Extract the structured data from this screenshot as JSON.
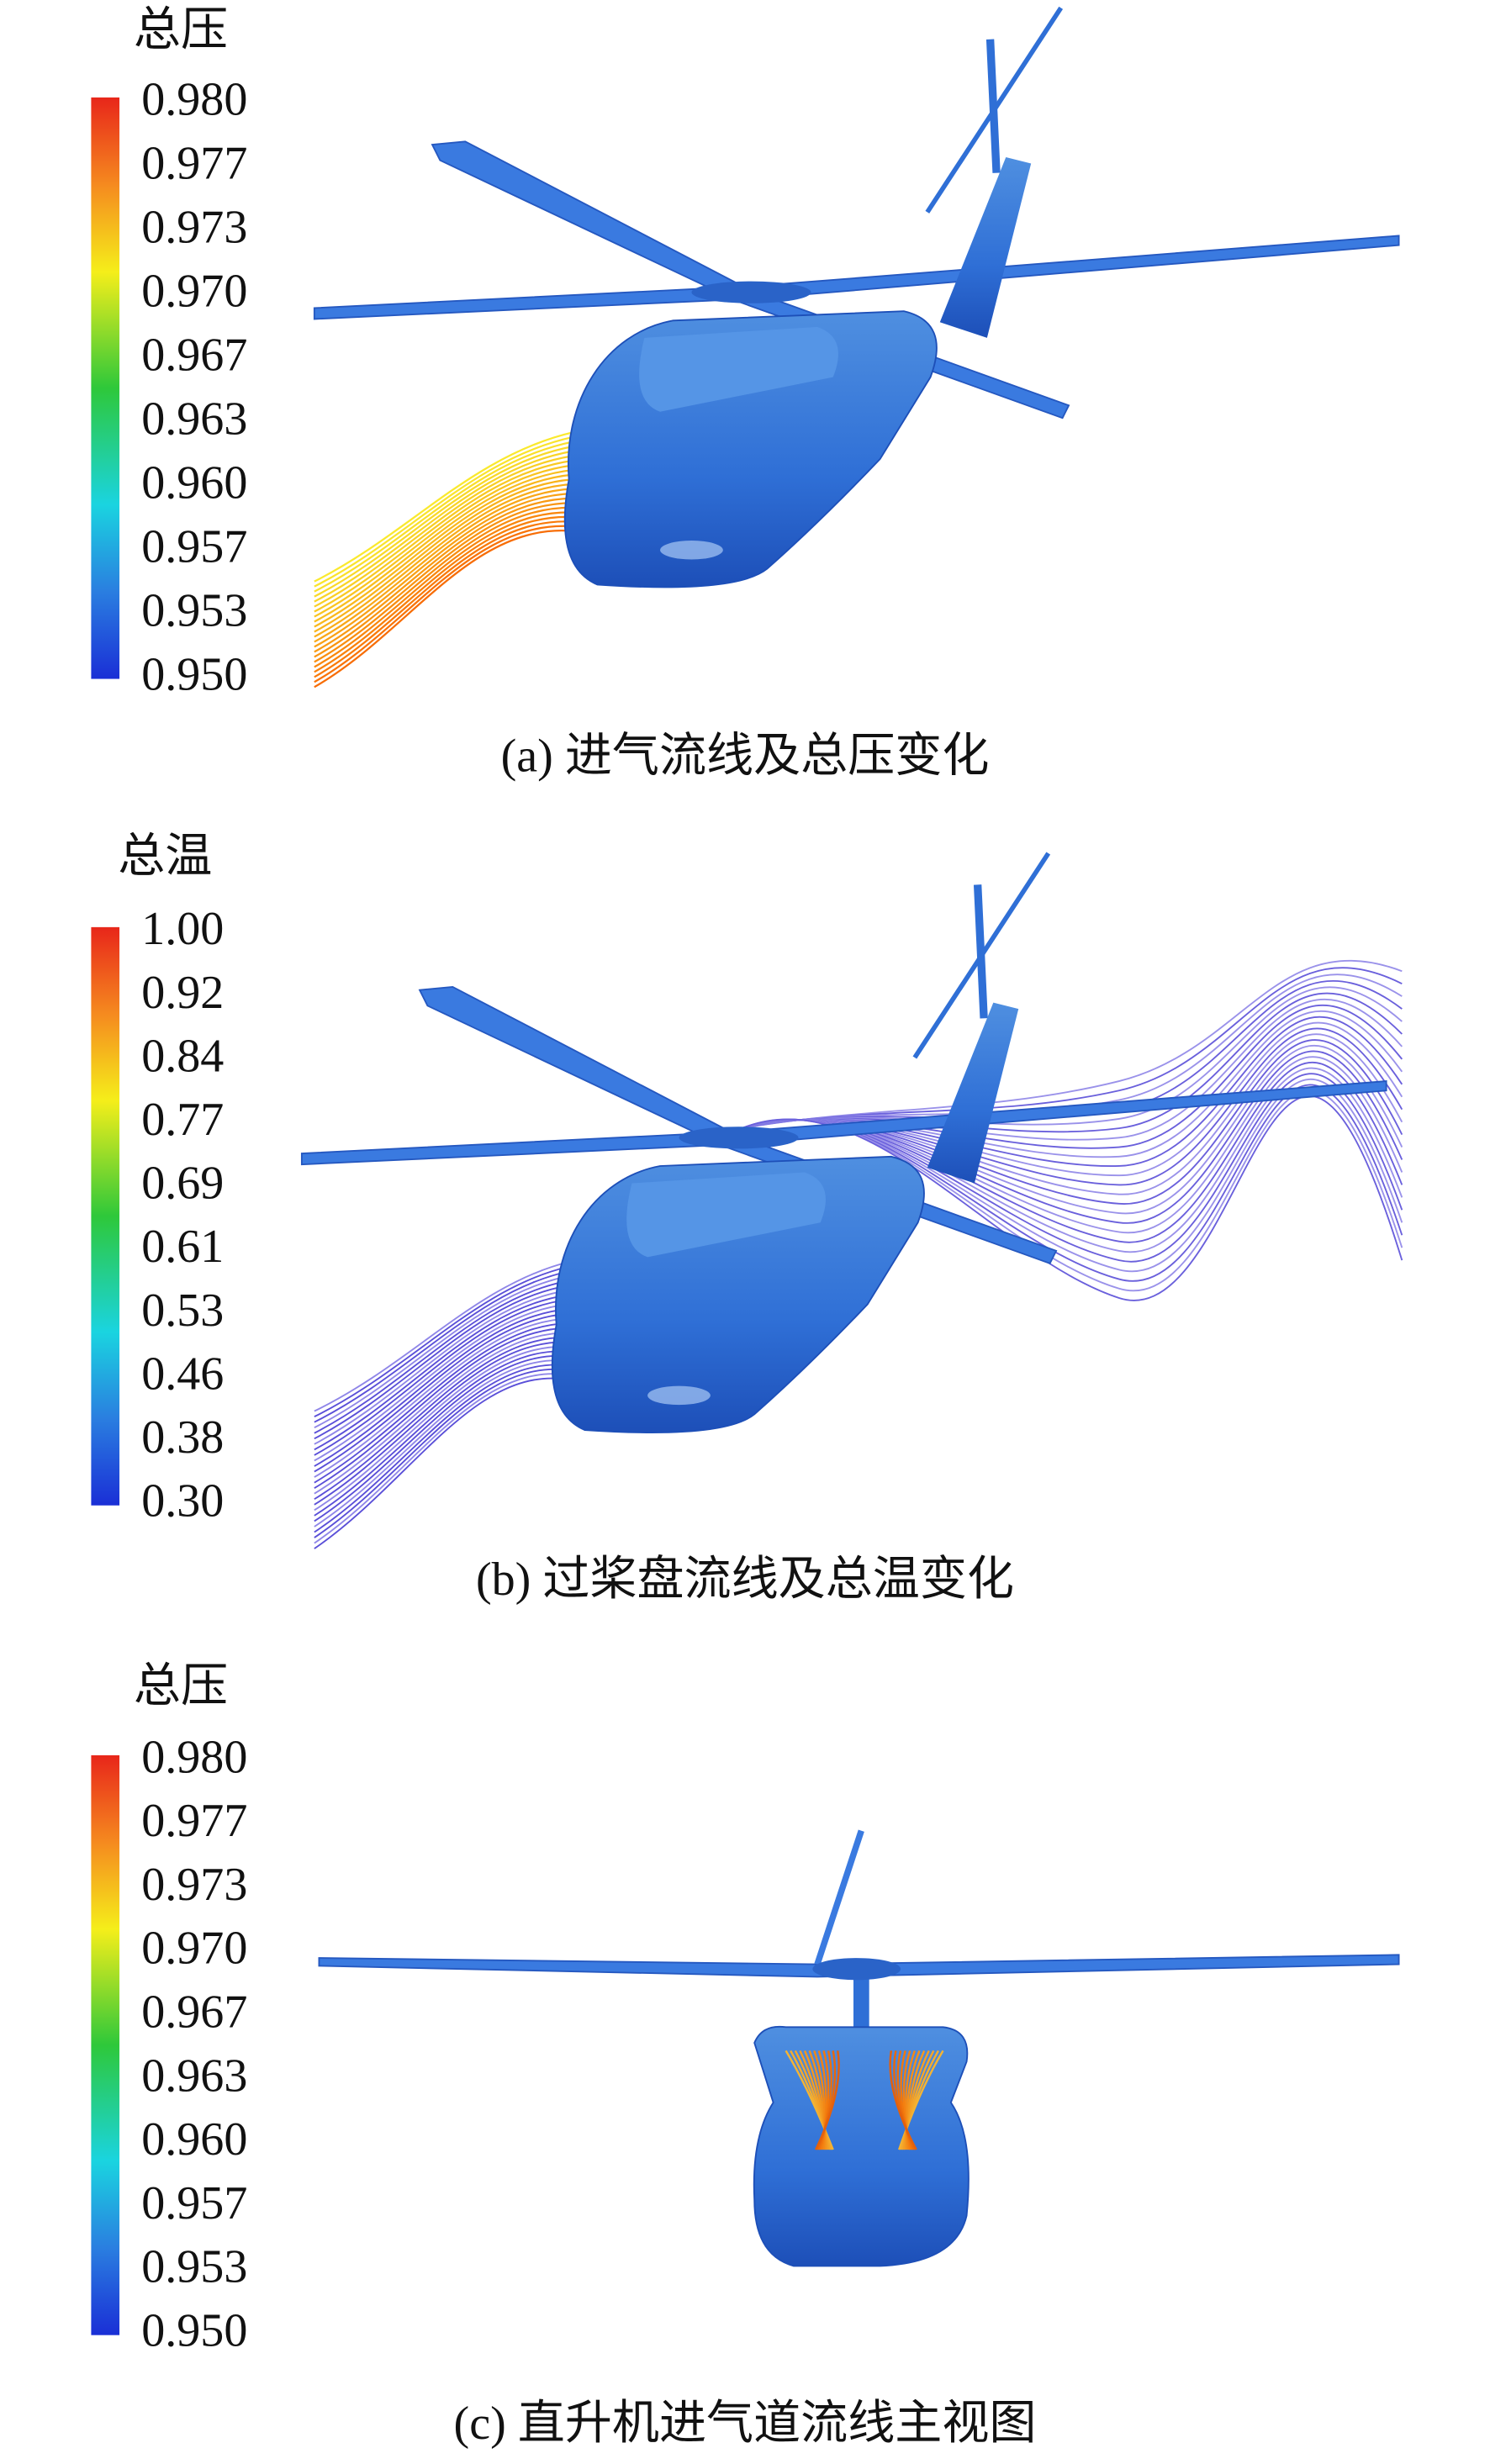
{
  "panels": [
    {
      "legend_title": "总压",
      "legend_labels": [
        "0.980",
        "0.977",
        "0.973",
        "0.970",
        "0.967",
        "0.963",
        "0.960",
        "0.957",
        "0.953",
        "0.950"
      ],
      "caption": "(a) 进气流线及总压变化"
    },
    {
      "legend_title": "总温",
      "legend_labels": [
        "1.00",
        "0.92",
        "0.84",
        "0.77",
        "0.69",
        "0.61",
        "0.53",
        "0.46",
        "0.38",
        "0.30"
      ],
      "caption": "(b) 过桨盘流线及总温变化"
    },
    {
      "legend_title": "总压",
      "legend_labels": [
        "0.980",
        "0.977",
        "0.973",
        "0.970",
        "0.967",
        "0.963",
        "0.960",
        "0.957",
        "0.953",
        "0.950"
      ],
      "caption": "(c) 直升机进气道流线主视图"
    }
  ]
}
